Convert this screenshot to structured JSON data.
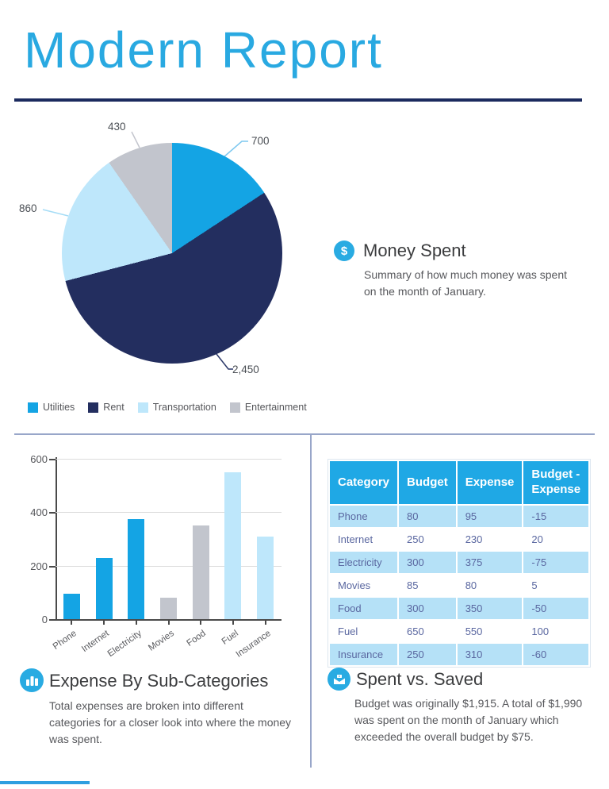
{
  "page": {
    "title": "Modern Report"
  },
  "colors": {
    "title_blue": "#29a9e1",
    "navy": "#232e5f",
    "bright_blue": "#14a4e4",
    "light_blue": "#bee7fb",
    "gray": "#c2c5cd",
    "icon_circle_blue": "#29abe2",
    "table_header_blue": "#1fa8e5",
    "table_alt_row": "#b5e1f7",
    "table_text": "#5a67a0",
    "divider": "#98a6c9"
  },
  "sections": {
    "money_spent": {
      "icon": "dollar-circle-icon",
      "icon_glyph": "$",
      "heading": "Money Spent",
      "body": "Summary of how much money was spent on the month of January."
    },
    "expense_categories": {
      "icon": "bar-chart-icon",
      "heading": "Expense By Sub-Categories",
      "body": "Total expenses are broken into different categories for a closer look into where the money was spent."
    },
    "spent_saved": {
      "icon": "envelope-money-icon",
      "heading": "Spent vs. Saved",
      "body": "Budget was originally $1,915. A total of $1,990 was spent on the month of January which exceeded the overall budget by $75."
    }
  },
  "chart_data": [
    {
      "type": "pie",
      "labels": [
        "Utilities",
        "Rent",
        "Transportation",
        "Entertainment"
      ],
      "values": [
        700,
        2450,
        860,
        430
      ],
      "display_values": [
        "700",
        "2,450",
        "860",
        "430"
      ],
      "colors": [
        "#14a4e4",
        "#232e5f",
        "#bee7fb",
        "#c2c5cd"
      ],
      "start_angle_deg": 0,
      "direction": "clockwise",
      "legend_position": "bottom"
    },
    {
      "type": "bar",
      "categories": [
        "Phone",
        "Internet",
        "Electricity",
        "Movies",
        "Food",
        "Fuel",
        "Insurance"
      ],
      "values": [
        95,
        230,
        375,
        80,
        350,
        550,
        310
      ],
      "bar_colors": [
        "#14a4e4",
        "#14a4e4",
        "#14a4e4",
        "#c2c5cd",
        "#c2c5cd",
        "#bee7fb",
        "#bee7fb"
      ],
      "ylim": [
        0,
        600
      ],
      "yticks": [
        0,
        200,
        400,
        600
      ],
      "grid": true,
      "xlabel": "",
      "ylabel": ""
    },
    {
      "type": "table",
      "columns": [
        "Category",
        "Budget",
        "Expense",
        "Budget - Expense"
      ],
      "rows": [
        [
          "Phone",
          "80",
          "95",
          "-15"
        ],
        [
          "Internet",
          "250",
          "230",
          "20"
        ],
        [
          "Electricity",
          "300",
          "375",
          "-75"
        ],
        [
          "Movies",
          "85",
          "80",
          "5"
        ],
        [
          "Food",
          "300",
          "350",
          "-50"
        ],
        [
          "Fuel",
          "650",
          "550",
          "100"
        ],
        [
          "Insurance",
          "250",
          "310",
          "-60"
        ]
      ]
    }
  ]
}
